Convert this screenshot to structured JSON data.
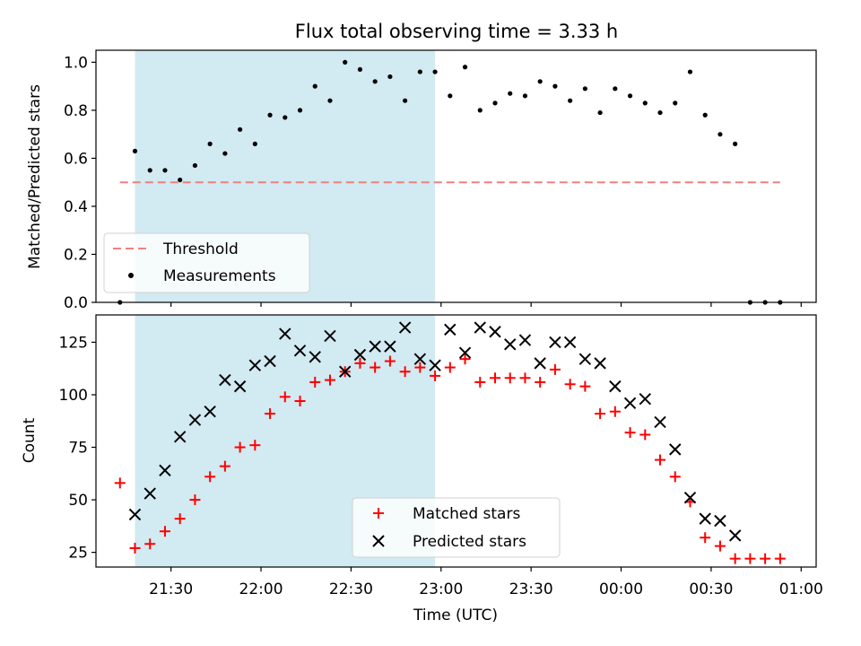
{
  "title": "Flux total observing time = 3.33 h",
  "colors": {
    "shade": "#add8e6",
    "threshold": "#f08080",
    "measurements": "#000000",
    "matched": "#ff0000",
    "predicted": "#000000"
  },
  "chart_data": [
    {
      "type": "scatter",
      "panel": "top",
      "ylabel": "Matched/Predicted stars",
      "ylim": [
        0,
        1.05
      ],
      "yticks": [
        "0.0",
        "0.2",
        "0.4",
        "0.6",
        "0.8",
        "1.0"
      ],
      "xticks_minutes": [
        90,
        120,
        150,
        180,
        210,
        240,
        270,
        300
      ],
      "observing_window": [
        "21:18",
        "22:58"
      ],
      "threshold": {
        "value": 0.5,
        "x": [
          "21:13",
          "00:53"
        ]
      },
      "legend": {
        "position": "lower-left",
        "entries": [
          "Threshold",
          "Measurements"
        ]
      },
      "series": [
        {
          "name": "Measurements",
          "x": [
            "21:13",
            "21:18",
            "21:23",
            "21:28",
            "21:33",
            "21:38",
            "21:43",
            "21:48",
            "21:53",
            "21:58",
            "22:03",
            "22:08",
            "22:13",
            "22:18",
            "22:23",
            "22:28",
            "22:33",
            "22:38",
            "22:43",
            "22:48",
            "22:53",
            "22:58",
            "23:03",
            "23:08",
            "23:13",
            "23:18",
            "23:23",
            "23:28",
            "23:33",
            "23:38",
            "23:43",
            "23:48",
            "23:53",
            "23:58",
            "00:03",
            "00:08",
            "00:13",
            "00:18",
            "00:23",
            "00:28",
            "00:33",
            "00:38",
            "00:43",
            "00:48",
            "00:53"
          ],
          "y": [
            0.0,
            0.63,
            0.55,
            0.55,
            0.51,
            0.57,
            0.66,
            0.62,
            0.72,
            0.66,
            0.78,
            0.77,
            0.8,
            0.9,
            0.84,
            1.0,
            0.97,
            0.92,
            0.94,
            0.84,
            0.96,
            0.96,
            0.86,
            0.98,
            0.8,
            0.83,
            0.87,
            0.86,
            0.92,
            0.9,
            0.84,
            0.89,
            0.79,
            0.89,
            0.86,
            0.83,
            0.79,
            0.83,
            0.96,
            0.78,
            0.7,
            0.66,
            0.0,
            0.0,
            0.0
          ]
        }
      ]
    },
    {
      "type": "scatter",
      "panel": "bottom",
      "ylabel": "Count",
      "xlabel": "Time (UTC)",
      "ylim": [
        18,
        138
      ],
      "yticks": [
        25,
        50,
        75,
        100,
        125
      ],
      "xticks": [
        "21:30",
        "22:00",
        "22:30",
        "23:00",
        "23:30",
        "00:00",
        "00:30",
        "01:00"
      ],
      "legend": {
        "position": "lower-center",
        "entries": [
          "Matched stars",
          "Predicted stars"
        ]
      },
      "series": [
        {
          "name": "Matched stars",
          "marker": "plus",
          "x": [
            "21:13",
            "21:18",
            "21:23",
            "21:28",
            "21:33",
            "21:38",
            "21:43",
            "21:48",
            "21:53",
            "21:58",
            "22:03",
            "22:08",
            "22:13",
            "22:18",
            "22:23",
            "22:28",
            "22:33",
            "22:38",
            "22:43",
            "22:48",
            "22:53",
            "22:58",
            "23:03",
            "23:08",
            "23:13",
            "23:18",
            "23:23",
            "23:28",
            "23:33",
            "23:38",
            "23:43",
            "23:48",
            "23:53",
            "23:58",
            "00:03",
            "00:08",
            "00:13",
            "00:18",
            "00:23",
            "00:28",
            "00:33",
            "00:38",
            "00:43",
            "00:48",
            "00:53"
          ],
          "y": [
            58,
            27,
            29,
            35,
            41,
            50,
            61,
            66,
            75,
            76,
            91,
            99,
            97,
            106,
            107,
            111,
            115,
            113,
            116,
            111,
            113,
            109,
            113,
            117,
            106,
            108,
            108,
            108,
            106,
            112,
            105,
            104,
            91,
            92,
            82,
            81,
            69,
            61,
            49,
            32,
            28,
            22,
            22,
            22,
            22
          ]
        },
        {
          "name": "Predicted stars",
          "marker": "x",
          "x": [
            "21:18",
            "21:23",
            "21:28",
            "21:33",
            "21:38",
            "21:43",
            "21:48",
            "21:53",
            "21:58",
            "22:03",
            "22:08",
            "22:13",
            "22:18",
            "22:23",
            "22:28",
            "22:33",
            "22:38",
            "22:43",
            "22:48",
            "22:53",
            "22:58",
            "23:03",
            "23:08",
            "23:13",
            "23:18",
            "23:23",
            "23:28",
            "23:33",
            "23:38",
            "23:43",
            "23:48",
            "23:53",
            "23:58",
            "00:03",
            "00:08",
            "00:13",
            "00:18",
            "00:23",
            "00:28",
            "00:33",
            "00:38"
          ],
          "y": [
            43,
            53,
            64,
            80,
            88,
            92,
            107,
            104,
            114,
            116,
            129,
            121,
            118,
            128,
            111,
            119,
            123,
            123,
            132,
            117,
            114,
            131,
            120,
            132,
            130,
            124,
            126,
            115,
            125,
            125,
            117,
            115,
            104,
            96,
            98,
            87,
            74,
            51,
            41,
            40,
            33
          ]
        }
      ]
    }
  ]
}
